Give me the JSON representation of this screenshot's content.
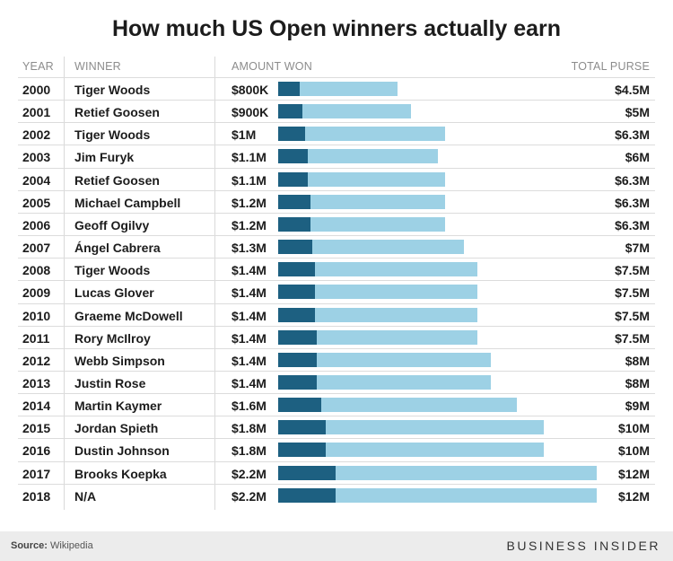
{
  "title": "How much US Open winners actually earn",
  "headers": {
    "year": "YEAR",
    "winner": "WINNER",
    "amount": "AMOUNT WON",
    "purse": "TOTAL PURSE"
  },
  "footer": {
    "source_label": "Source:",
    "source": "Wikipedia",
    "brand": "BUSINESS INSIDER"
  },
  "colors": {
    "won": "#1d6081",
    "purse": "#9dd1e5"
  },
  "chart_data": {
    "type": "bar",
    "units": "USD millions",
    "rows": [
      {
        "year": "2000",
        "winner": "Tiger Woods",
        "won_label": "$800K",
        "purse_label": "$4.5M",
        "won": 0.8,
        "purse": 4.5
      },
      {
        "year": "2001",
        "winner": "Retief Goosen",
        "won_label": "$900K",
        "purse_label": "$5M",
        "won": 0.9,
        "purse": 5
      },
      {
        "year": "2002",
        "winner": "Tiger Woods",
        "won_label": "$1M",
        "purse_label": "$6.3M",
        "won": 1.0,
        "purse": 6.3
      },
      {
        "year": "2003",
        "winner": "Jim Furyk",
        "won_label": "$1.1M",
        "purse_label": "$6M",
        "won": 1.1,
        "purse": 6
      },
      {
        "year": "2004",
        "winner": "Retief Goosen",
        "won_label": "$1.1M",
        "purse_label": "$6.3M",
        "won": 1.1,
        "purse": 6.3
      },
      {
        "year": "2005",
        "winner": "Michael Campbell",
        "won_label": "$1.2M",
        "purse_label": "$6.3M",
        "won": 1.2,
        "purse": 6.3
      },
      {
        "year": "2006",
        "winner": "Geoff Ogilvy",
        "won_label": "$1.2M",
        "purse_label": "$6.3M",
        "won": 1.2,
        "purse": 6.3
      },
      {
        "year": "2007",
        "winner": "Ángel Cabrera",
        "won_label": "$1.3M",
        "purse_label": "$7M",
        "won": 1.3,
        "purse": 7
      },
      {
        "year": "2008",
        "winner": "Tiger Woods",
        "won_label": "$1.4M",
        "purse_label": "$7.5M",
        "won": 1.4,
        "purse": 7.5
      },
      {
        "year": "2009",
        "winner": "Lucas Glover",
        "won_label": "$1.4M",
        "purse_label": "$7.5M",
        "won": 1.4,
        "purse": 7.5
      },
      {
        "year": "2010",
        "winner": "Graeme McDowell",
        "won_label": "$1.4M",
        "purse_label": "$7.5M",
        "won": 1.4,
        "purse": 7.5
      },
      {
        "year": "2011",
        "winner": "Rory McIlroy",
        "won_label": "$1.4M",
        "purse_label": "$7.5M",
        "won": 1.44,
        "purse": 7.5
      },
      {
        "year": "2012",
        "winner": "Webb Simpson",
        "won_label": "$1.4M",
        "purse_label": "$8M",
        "won": 1.44,
        "purse": 8
      },
      {
        "year": "2013",
        "winner": "Justin Rose",
        "won_label": "$1.4M",
        "purse_label": "$8M",
        "won": 1.44,
        "purse": 8
      },
      {
        "year": "2014",
        "winner": "Martin Kaymer",
        "won_label": "$1.6M",
        "purse_label": "$9M",
        "won": 1.62,
        "purse": 9
      },
      {
        "year": "2015",
        "winner": "Jordan Spieth",
        "won_label": "$1.8M",
        "purse_label": "$10M",
        "won": 1.8,
        "purse": 10
      },
      {
        "year": "2016",
        "winner": "Dustin Johnson",
        "won_label": "$1.8M",
        "purse_label": "$10M",
        "won": 1.8,
        "purse": 10
      },
      {
        "year": "2017",
        "winner": "Brooks Koepka",
        "won_label": "$2.2M",
        "purse_label": "$12M",
        "won": 2.16,
        "purse": 12
      },
      {
        "year": "2018",
        "winner": "N/A",
        "won_label": "$2.2M",
        "purse_label": "$12M",
        "won": 2.16,
        "purse": 12
      }
    ]
  }
}
